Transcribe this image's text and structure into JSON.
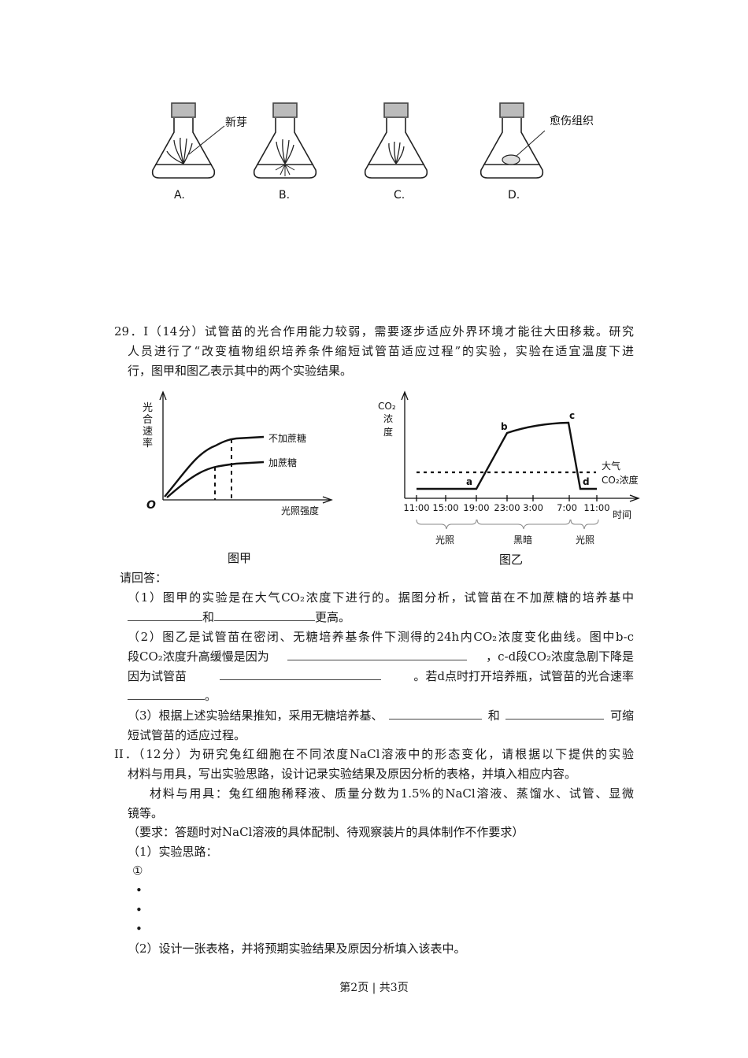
{
  "flasks": {
    "labels": [
      "A.",
      "B.",
      "C.",
      "D."
    ],
    "callout_sprout": "新芽",
    "callout_callus": "愈伤组织"
  },
  "q29": {
    "part1_lines": [
      "29．I（14分）试管苗的光合作用能力较弱，需要逐步适应外界环境才能往大田移栽。研究",
      "人员进行了“改变植物组织培养条件缩短试管苗适应过程”的实验，实验在适宜温度下进",
      "行，图甲和图乙表示其中的两个实验结果。"
    ],
    "fig_jia": {
      "ylabel_chars": [
        "光",
        "合",
        "速",
        "率"
      ],
      "origin": "O",
      "xlabel": "光照强度",
      "curve_labels": [
        "不加蔗糖",
        "加蔗糖"
      ],
      "caption": "图甲"
    },
    "fig_yi": {
      "ylabel": [
        "CO₂",
        "浓",
        "度"
      ],
      "xlabel": "时间",
      "ticks": [
        "11:00",
        "15:00",
        "19:00",
        "23:00",
        "3:00",
        "7:00",
        "11:00"
      ],
      "points": [
        "a",
        "b",
        "c",
        "d"
      ],
      "ref_line_label": [
        "大气",
        "CO₂浓度"
      ],
      "periods": [
        "光照",
        "黑暗",
        "光照"
      ],
      "caption": "图乙"
    },
    "prompt": "请回答：",
    "q1": [
      "（1）图甲的实验是在大气CO₂浓度下进行的。据图分析，试管苗在不加蔗糖的培养基中",
      "和",
      "更高。"
    ],
    "q2": [
      "（2）图乙是试管苗在密闭、无糖培养基条件下测得的24h内CO₂浓度变化曲线。图中b-c",
      "段CO₂浓度升高缓慢是因为",
      "，c-d段CO₂浓度急剧下降是",
      "因为试管苗",
      "。若d点时打开培养瓶，试管苗的光合速率",
      "。"
    ],
    "q3": [
      "（3）根据上述实验结果推知，采用无糖培养基、",
      "和",
      "可缩",
      "短试管苗的适应过程。"
    ],
    "part2": [
      "II．（12分）为研究兔红细胞在不同浓度NaCl溶液中的形态变化，请根据以下提供的实验",
      "材料与用具，写出实验思路，设计记录实验结果及原因分析的表格，并填入相应内容。",
      "材料与用具：兔红细胞稀释液、质量分数为1.5%的NaCl溶液、蒸馏水、试管、显微",
      "镜等。",
      "（要求：答题时对NaCl溶液的具体配制、待观察装片的具体制作不作要求）",
      "（1）实验思路：",
      "①",
      "•",
      "•",
      "•",
      "（2）设计一张表格，并将预期实验结果及原因分析填入该表中。"
    ]
  },
  "footer": "第2页 | 共3页"
}
